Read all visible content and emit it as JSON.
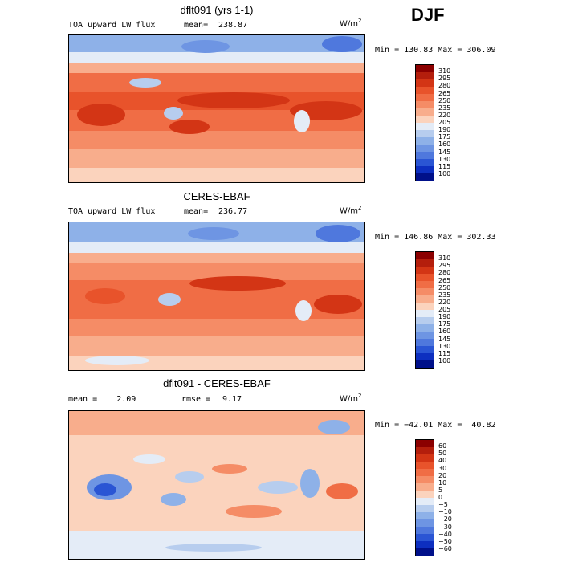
{
  "season": "DJF",
  "panels": [
    {
      "title": "dflt091 (yrs 1-1)",
      "left_label": "TOA upward LW flux",
      "mean_label": "mean=",
      "mean_value": "238.87",
      "units_base": "W/m",
      "units_exp": "2",
      "minmax": "Min = 130.83 Max = 306.09",
      "colorbar": {
        "labels": [
          "310",
          "295",
          "280",
          "265",
          "250",
          "235",
          "220",
          "205",
          "190",
          "175",
          "160",
          "145",
          "130",
          "115",
          "100"
        ],
        "colors": [
          "#8b0000",
          "#b41e0c",
          "#d33515",
          "#e8532b",
          "#f06d45",
          "#f58c66",
          "#f8ad8c",
          "#fbd3bd",
          "#e4ecf7",
          "#b7cdee",
          "#8eb1e8",
          "#6e95e3",
          "#4f78dd",
          "#2a55d4",
          "#0d2fc0",
          "#00108a"
        ]
      }
    },
    {
      "title": "CERES-EBAF",
      "left_label": "TOA upward LW flux",
      "mean_label": "mean=",
      "mean_value": "236.77",
      "units_base": "W/m",
      "units_exp": "2",
      "minmax": "Min = 146.86 Max = 302.33",
      "colorbar": {
        "labels": [
          "310",
          "295",
          "280",
          "265",
          "250",
          "235",
          "220",
          "205",
          "190",
          "175",
          "160",
          "145",
          "130",
          "115",
          "100"
        ],
        "colors": [
          "#8b0000",
          "#b41e0c",
          "#d33515",
          "#e8532b",
          "#f06d45",
          "#f58c66",
          "#f8ad8c",
          "#fbd3bd",
          "#e4ecf7",
          "#b7cdee",
          "#8eb1e8",
          "#6e95e3",
          "#4f78dd",
          "#2a55d4",
          "#0d2fc0",
          "#00108a"
        ]
      }
    },
    {
      "title": "dflt091 - CERES-EBAF",
      "left_label": "mean =    2.09",
      "mean_label": "rmse =",
      "mean_value": "9.17",
      "units_base": "W/m",
      "units_exp": "2",
      "minmax": "Min = −42.01 Max =  40.82",
      "colorbar": {
        "labels": [
          "60",
          "50",
          "40",
          "30",
          "20",
          "10",
          "5",
          "0",
          "−5",
          "−10",
          "−20",
          "−30",
          "−40",
          "−50",
          "−60"
        ],
        "colors": [
          "#8b0000",
          "#b41e0c",
          "#d33515",
          "#e8532b",
          "#f06d45",
          "#f58c66",
          "#f8ad8c",
          "#fbd3bd",
          "#e4ecf7",
          "#b7cdee",
          "#8eb1e8",
          "#6e95e3",
          "#4f78dd",
          "#2a55d4",
          "#0d2fc0",
          "#00108a"
        ]
      }
    }
  ]
}
